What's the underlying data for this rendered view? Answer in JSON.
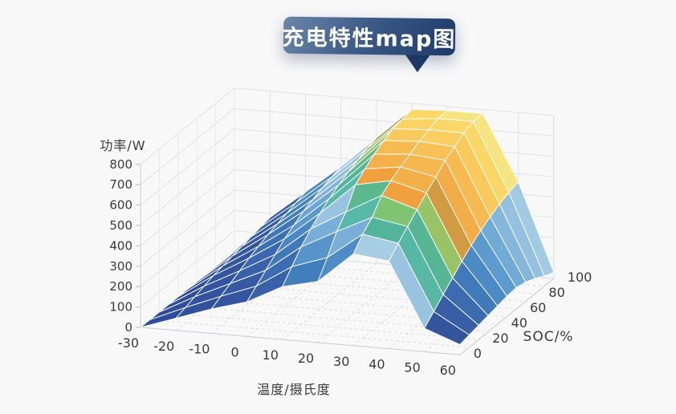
{
  "title": {
    "text": "充电特性map图"
  },
  "badge": {
    "gradient_from": "#6b87a9",
    "gradient_mid": "#3e5c88",
    "gradient_to": "#1c3a68",
    "text_color": "#ffffff"
  },
  "axes": {
    "z": {
      "label": "功率/W",
      "ticks": [
        0,
        100,
        200,
        300,
        400,
        500,
        600,
        700,
        800
      ],
      "range": [
        0,
        800
      ]
    },
    "x": {
      "label": "温度/摄氏度",
      "ticks": [
        -30,
        -20,
        -10,
        0,
        10,
        20,
        30,
        40,
        50,
        60
      ]
    },
    "y": {
      "label": "SOC/%",
      "ticks": [
        0,
        20,
        40,
        60,
        80,
        100
      ]
    }
  },
  "chart_data": {
    "type": "surface",
    "title": "充电特性map图",
    "xlabel": "温度/摄氏度",
    "ylabel": "SOC/%",
    "zlabel": "功率/W",
    "zlim": [
      0,
      800
    ],
    "grid": true,
    "legend_position": "none",
    "x_temperature_c": [
      -30,
      -20,
      -10,
      0,
      10,
      20,
      30,
      40,
      50,
      60
    ],
    "y_soc_pct": [
      0,
      10,
      20,
      30,
      40,
      50,
      60,
      70,
      80,
      90,
      100
    ],
    "z_power_w": [
      [
        0,
        0,
        0,
        0,
        0,
        0,
        0,
        0,
        0,
        0,
        0
      ],
      [
        60,
        75,
        90,
        105,
        120,
        130,
        140,
        150,
        160,
        170,
        180
      ],
      [
        120,
        145,
        170,
        195,
        220,
        240,
        260,
        275,
        290,
        305,
        320
      ],
      [
        170,
        210,
        250,
        290,
        330,
        360,
        390,
        410,
        430,
        445,
        460
      ],
      [
        260,
        320,
        380,
        430,
        470,
        505,
        535,
        560,
        580,
        600,
        615
      ],
      [
        300,
        380,
        470,
        530,
        625,
        665,
        700,
        730,
        750,
        760,
        770
      ],
      [
        450,
        510,
        555,
        625,
        660,
        690,
        715,
        740,
        760,
        778,
        780
      ],
      [
        430,
        480,
        525,
        570,
        615,
        655,
        700,
        730,
        760,
        778,
        780
      ],
      [
        115,
        160,
        205,
        250,
        295,
        335,
        370,
        400,
        425,
        445,
        460
      ],
      [
        50,
        60,
        70,
        80,
        90,
        100,
        105,
        95,
        75,
        50,
        30
      ]
    ],
    "colormap": [
      [
        0,
        "#2e4c99"
      ],
      [
        130,
        "#34569f"
      ],
      [
        210,
        "#3c6cb1"
      ],
      [
        280,
        "#4584c1"
      ],
      [
        340,
        "#5f9ccf"
      ],
      [
        390,
        "#7fb3da"
      ],
      [
        430,
        "#98c3e1"
      ],
      [
        455,
        "#a9cfe3"
      ],
      [
        470,
        "#58b9a8"
      ],
      [
        520,
        "#4fb398"
      ],
      [
        555,
        "#7ec473"
      ],
      [
        582,
        "#b0c25e"
      ],
      [
        602,
        "#9d9049"
      ],
      [
        622,
        "#ef9f3d"
      ],
      [
        640,
        "#f2a944"
      ],
      [
        700,
        "#f6ba50"
      ],
      [
        755,
        "#fbd564"
      ],
      [
        770,
        "#fbdb6e"
      ],
      [
        782,
        "#f3e88e"
      ]
    ],
    "mesh_line_color": "#ffffff",
    "wall_grid_color": "#e0e2e5",
    "floor_grid_color": "#d8dadd",
    "axis_line_color": "#c9ccd0",
    "tick_text_color": "#3a3a3a",
    "background": "#f8f8f9"
  }
}
